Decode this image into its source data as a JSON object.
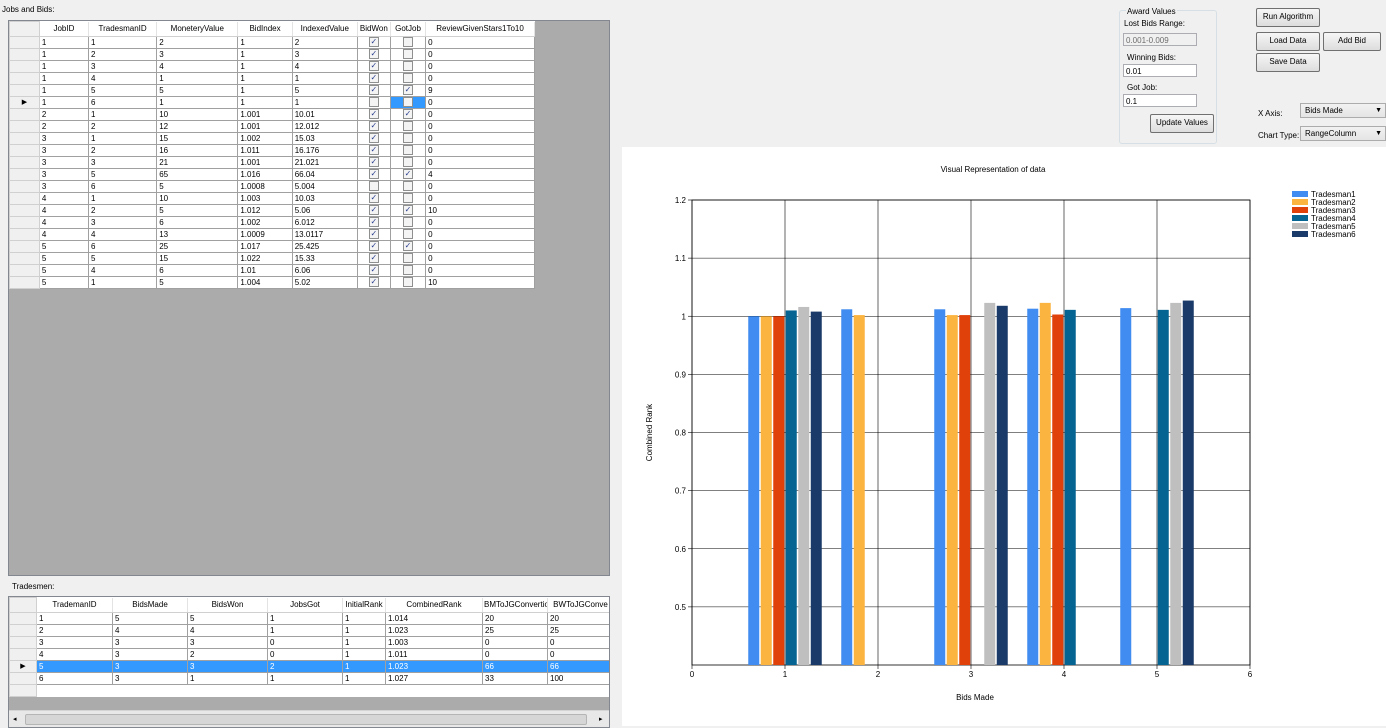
{
  "jobs_label": "Jobs and Bids:",
  "jobs_columns": [
    "JobID",
    "TradesmanID",
    "MoneteryValue",
    "BidIndex",
    "IndexedValue",
    "BidWon",
    "GotJob",
    "ReviewGivenStars1To10"
  ],
  "jobs_rows": [
    {
      "job": "1",
      "trade": "1",
      "money": "2",
      "bidindex": "1",
      "indexed": "2",
      "won": true,
      "got": false,
      "review": "0"
    },
    {
      "job": "1",
      "trade": "2",
      "money": "3",
      "bidindex": "1",
      "indexed": "3",
      "won": true,
      "got": false,
      "review": "0"
    },
    {
      "job": "1",
      "trade": "3",
      "money": "4",
      "bidindex": "1",
      "indexed": "4",
      "won": true,
      "got": false,
      "review": "0"
    },
    {
      "job": "1",
      "trade": "4",
      "money": "1",
      "bidindex": "1",
      "indexed": "1",
      "won": true,
      "got": false,
      "review": "0"
    },
    {
      "job": "1",
      "trade": "5",
      "money": "5",
      "bidindex": "1",
      "indexed": "5",
      "won": true,
      "got": true,
      "review": "9"
    },
    {
      "job": "1",
      "trade": "6",
      "money": "1",
      "bidindex": "1",
      "indexed": "1",
      "won": false,
      "got": false,
      "review": "0",
      "current": true
    },
    {
      "job": "2",
      "trade": "1",
      "money": "10",
      "bidindex": "1.001",
      "indexed": "10.01",
      "won": true,
      "got": true,
      "review": "0"
    },
    {
      "job": "2",
      "trade": "2",
      "money": "12",
      "bidindex": "1.001",
      "indexed": "12.012",
      "won": true,
      "got": false,
      "review": "0"
    },
    {
      "job": "3",
      "trade": "1",
      "money": "15",
      "bidindex": "1.002",
      "indexed": "15.03",
      "won": true,
      "got": false,
      "review": "0"
    },
    {
      "job": "3",
      "trade": "2",
      "money": "16",
      "bidindex": "1.011",
      "indexed": "16.176",
      "won": true,
      "got": false,
      "review": "0"
    },
    {
      "job": "3",
      "trade": "3",
      "money": "21",
      "bidindex": "1.001",
      "indexed": "21.021",
      "won": true,
      "got": false,
      "review": "0"
    },
    {
      "job": "3",
      "trade": "5",
      "money": "65",
      "bidindex": "1.016",
      "indexed": "66.04",
      "won": true,
      "got": true,
      "review": "4"
    },
    {
      "job": "3",
      "trade": "6",
      "money": "5",
      "bidindex": "1.0008",
      "indexed": "5.004",
      "won": false,
      "got": false,
      "review": "0"
    },
    {
      "job": "4",
      "trade": "1",
      "money": "10",
      "bidindex": "1.003",
      "indexed": "10.03",
      "won": true,
      "got": false,
      "review": "0"
    },
    {
      "job": "4",
      "trade": "2",
      "money": "5",
      "bidindex": "1.012",
      "indexed": "5.06",
      "won": true,
      "got": true,
      "review": "10"
    },
    {
      "job": "4",
      "trade": "3",
      "money": "6",
      "bidindex": "1.002",
      "indexed": "6.012",
      "won": true,
      "got": false,
      "review": "0"
    },
    {
      "job": "4",
      "trade": "4",
      "money": "13",
      "bidindex": "1.0009",
      "indexed": "13.0117",
      "won": true,
      "got": false,
      "review": "0"
    },
    {
      "job": "5",
      "trade": "6",
      "money": "25",
      "bidindex": "1.017",
      "indexed": "25.425",
      "won": true,
      "got": true,
      "review": "0"
    },
    {
      "job": "5",
      "trade": "5",
      "money": "15",
      "bidindex": "1.022",
      "indexed": "15.33",
      "won": true,
      "got": false,
      "review": "0"
    },
    {
      "job": "5",
      "trade": "4",
      "money": "6",
      "bidindex": "1.01",
      "indexed": "6.06",
      "won": true,
      "got": false,
      "review": "0"
    },
    {
      "job": "5",
      "trade": "1",
      "money": "5",
      "bidindex": "1.004",
      "indexed": "5.02",
      "won": true,
      "got": false,
      "review": "10"
    }
  ],
  "trades_label": "Tradesmen:",
  "trades_columns": [
    "TrademanID",
    "BidsMade",
    "BidsWon",
    "JobsGot",
    "InitialRank",
    "CombinedRank",
    "BMToJGConvertion",
    "BWToJGConve"
  ],
  "trades_rows": [
    [
      "1",
      "5",
      "5",
      "1",
      "1",
      "1.014",
      "20",
      "20"
    ],
    [
      "2",
      "4",
      "4",
      "1",
      "1",
      "1.023",
      "25",
      "25"
    ],
    [
      "3",
      "3",
      "3",
      "0",
      "1",
      "1.003",
      "0",
      "0"
    ],
    [
      "4",
      "3",
      "2",
      "0",
      "1",
      "1.011",
      "0",
      "0"
    ],
    [
      "5",
      "3",
      "3",
      "2",
      "1",
      "1.023",
      "66",
      "66"
    ],
    [
      "6",
      "3",
      "1",
      "1",
      "1",
      "1.027",
      "33",
      "100"
    ]
  ],
  "trades_selected_row": 4,
  "award": {
    "title": "Award Values",
    "lost_label": "Lost Bids Range:",
    "lost_value": "0.001-0.009",
    "winning_label": "Winning Bids:",
    "winning_value": "0.01",
    "gotjob_label": "Got Job:",
    "gotjob_value": "0.1",
    "update_button": "Update Values"
  },
  "buttons": {
    "run": "Run Algorithm",
    "load": "Load Data",
    "add": "Add Bid",
    "save": "Save Data"
  },
  "xaxis": {
    "label": "X Axis:",
    "value": "Bids Made"
  },
  "charttype": {
    "label": "Chart Type:",
    "value": "RangeColumn"
  },
  "colors": {
    "selection": "#3399ff"
  },
  "chart_data": {
    "type": "bar",
    "title": "Visual Representation of data",
    "xlabel": "Bids Made",
    "ylabel": "Combined Rank",
    "xlim": [
      0,
      6
    ],
    "x_ticks": [
      "0",
      "1",
      "2",
      "3",
      "4",
      "5",
      "6"
    ],
    "ylim": [
      0.4,
      1.2
    ],
    "y_ticks": [
      "0.5",
      "0.6",
      "0.7",
      "0.8",
      "0.9",
      "1",
      "1.1",
      "1.2"
    ],
    "grid": true,
    "legend_position": "top-right",
    "series": [
      {
        "name": "Tradesman1",
        "color": "#418cf0",
        "points": [
          {
            "x": 1,
            "y": 1.0
          },
          {
            "x": 2,
            "y": 1.012
          },
          {
            "x": 3,
            "y": 1.012
          },
          {
            "x": 4,
            "y": 1.013
          },
          {
            "x": 5,
            "y": 1.014
          }
        ]
      },
      {
        "name": "Tradesman2",
        "color": "#fcb441",
        "points": [
          {
            "x": 1,
            "y": 1.0
          },
          {
            "x": 2,
            "y": 1.002
          },
          {
            "x": 3,
            "y": 1.002
          },
          {
            "x": 4,
            "y": 1.023
          }
        ]
      },
      {
        "name": "Tradesman3",
        "color": "#e0400a",
        "points": [
          {
            "x": 1,
            "y": 1.0
          },
          {
            "x": 3,
            "y": 1.002
          },
          {
            "x": 4,
            "y": 1.003
          }
        ]
      },
      {
        "name": "Tradesman4",
        "color": "#056492",
        "points": [
          {
            "x": 1,
            "y": 1.01
          },
          {
            "x": 4,
            "y": 1.011
          },
          {
            "x": 5,
            "y": 1.011
          }
        ]
      },
      {
        "name": "Tradesman5",
        "color": "#bfbfbf",
        "points": [
          {
            "x": 1,
            "y": 1.016
          },
          {
            "x": 3,
            "y": 1.023
          },
          {
            "x": 5,
            "y": 1.023
          }
        ]
      },
      {
        "name": "Tradesman6",
        "color": "#1a3b69",
        "points": [
          {
            "x": 1,
            "y": 1.008
          },
          {
            "x": 3,
            "y": 1.018
          },
          {
            "x": 5,
            "y": 1.027
          }
        ]
      }
    ]
  }
}
